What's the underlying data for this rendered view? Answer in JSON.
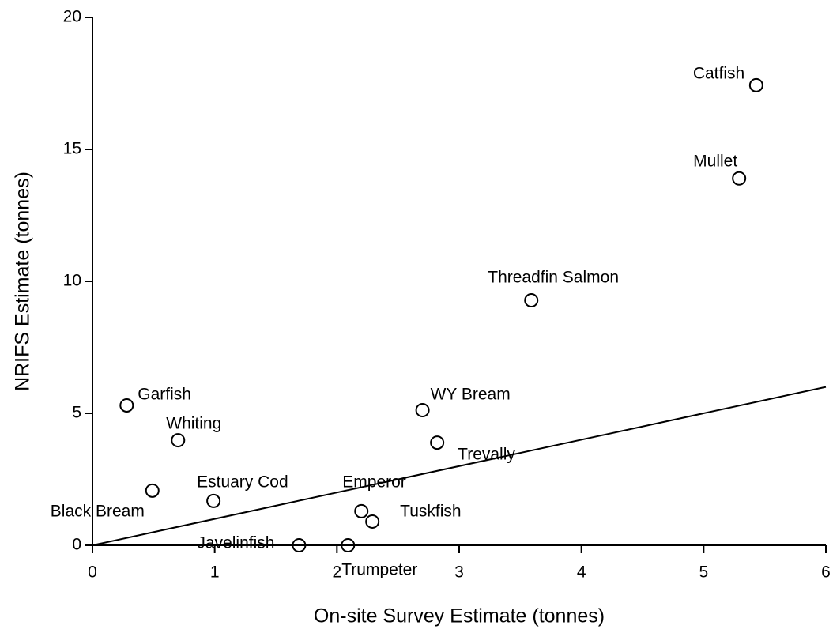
{
  "chart_data": {
    "type": "scatter",
    "xlabel": "On-site Survey Estimate (tonnes)",
    "ylabel": "NRIFS Estimate (tonnes)",
    "labels": [
      "Catfish",
      "Mullet",
      "Threadfin Salmon",
      "Garfish",
      "Whiting",
      "WY Bream",
      "Trevally",
      "Black Bream",
      "Estuary Cod",
      "Emperor",
      "Tuskfish",
      "Javelinfish",
      "Trumpeter"
    ],
    "x": [
      5.43,
      5.29,
      3.59,
      0.28,
      0.7,
      2.7,
      2.82,
      0.49,
      0.99,
      2.2,
      2.29,
      1.69,
      2.09
    ],
    "y": [
      17.43,
      13.9,
      9.28,
      5.3,
      3.98,
      5.12,
      3.89,
      2.07,
      1.68,
      1.29,
      0.9,
      0,
      0
    ],
    "line": {
      "x": [
        0,
        6
      ],
      "y": [
        0,
        6
      ]
    },
    "xlim": [
      0,
      6
    ],
    "xticks": [
      0,
      1,
      2,
      3,
      4,
      5,
      6
    ],
    "ylim": [
      0,
      20
    ],
    "yticks": [
      0,
      5,
      10,
      15,
      20
    ],
    "color": "#000000"
  }
}
